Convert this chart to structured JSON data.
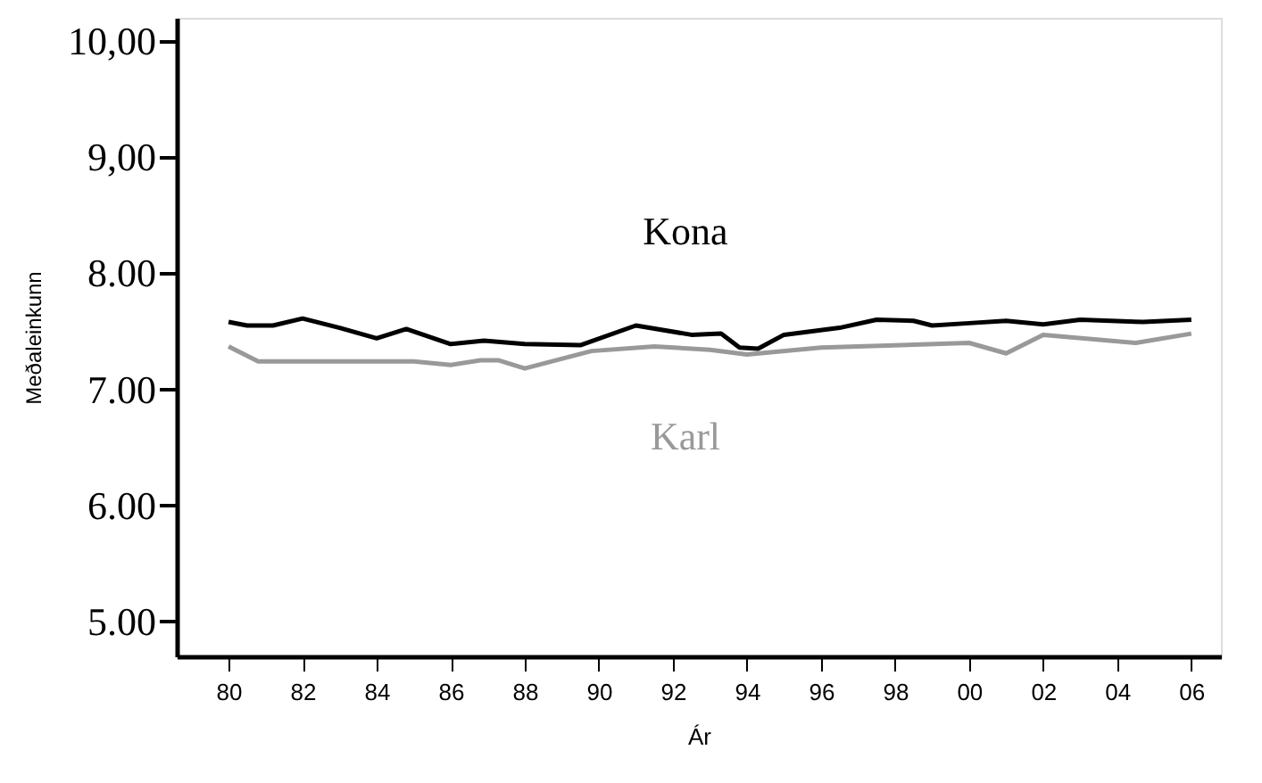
{
  "chart_data": {
    "type": "line",
    "xlabel": "Ár",
    "ylabel": "Meðaleinkunn",
    "xlim": [
      1978.6,
      2006.8
    ],
    "ylim": [
      4.7,
      10.2
    ],
    "xticks": [
      {
        "value": 1980,
        "label": "80"
      },
      {
        "value": 1982,
        "label": "82"
      },
      {
        "value": 1984,
        "label": "84"
      },
      {
        "value": 1986,
        "label": "86"
      },
      {
        "value": 1988,
        "label": "88"
      },
      {
        "value": 1990,
        "label": "90"
      },
      {
        "value": 1992,
        "label": "92"
      },
      {
        "value": 1994,
        "label": "94"
      },
      {
        "value": 1996,
        "label": "96"
      },
      {
        "value": 1998,
        "label": "98"
      },
      {
        "value": 2000,
        "label": "00"
      },
      {
        "value": 2002,
        "label": "02"
      },
      {
        "value": 2004,
        "label": "04"
      },
      {
        "value": 2006,
        "label": "06"
      }
    ],
    "yticks": [
      {
        "value": 5,
        "label": "5.00"
      },
      {
        "value": 6,
        "label": "6.00"
      },
      {
        "value": 7,
        "label": "7.00"
      },
      {
        "value": 8,
        "label": "8.00"
      },
      {
        "value": 9,
        "label": "9,00"
      },
      {
        "value": 10,
        "label": "10,00"
      }
    ],
    "grid": false,
    "legend": false,
    "marker": "none",
    "line_style": "solid",
    "series": [
      {
        "name": "Kona",
        "color": "#000000",
        "x": [
          1980,
          1980.5,
          1981.2,
          1982,
          1983,
          1984,
          1984.8,
          1986,
          1986.9,
          1988,
          1989.5,
          1991,
          1992.5,
          1993.3,
          1993.8,
          1994.3,
          1995,
          1996.5,
          1997.5,
          1998.5,
          1999,
          2000,
          2001,
          2002,
          2003,
          2004.7,
          2006
        ],
        "values": [
          7.58,
          7.55,
          7.55,
          7.61,
          7.53,
          7.44,
          7.52,
          7.39,
          7.42,
          7.39,
          7.38,
          7.55,
          7.47,
          7.48,
          7.36,
          7.35,
          7.47,
          7.53,
          7.6,
          7.59,
          7.55,
          7.57,
          7.59,
          7.56,
          7.6,
          7.58,
          7.6
        ]
      },
      {
        "name": "Karl",
        "color": "#999999",
        "x": [
          1980,
          1980.8,
          1982,
          1985,
          1986,
          1986.8,
          1987.3,
          1988,
          1989.8,
          1991.5,
          1993,
          1994,
          1996,
          2000,
          2001,
          2002,
          2004.5,
          2006
        ],
        "values": [
          7.37,
          7.24,
          7.24,
          7.24,
          7.21,
          7.25,
          7.25,
          7.18,
          7.33,
          7.37,
          7.34,
          7.3,
          7.36,
          7.4,
          7.31,
          7.47,
          7.4,
          7.48
        ]
      }
    ]
  }
}
